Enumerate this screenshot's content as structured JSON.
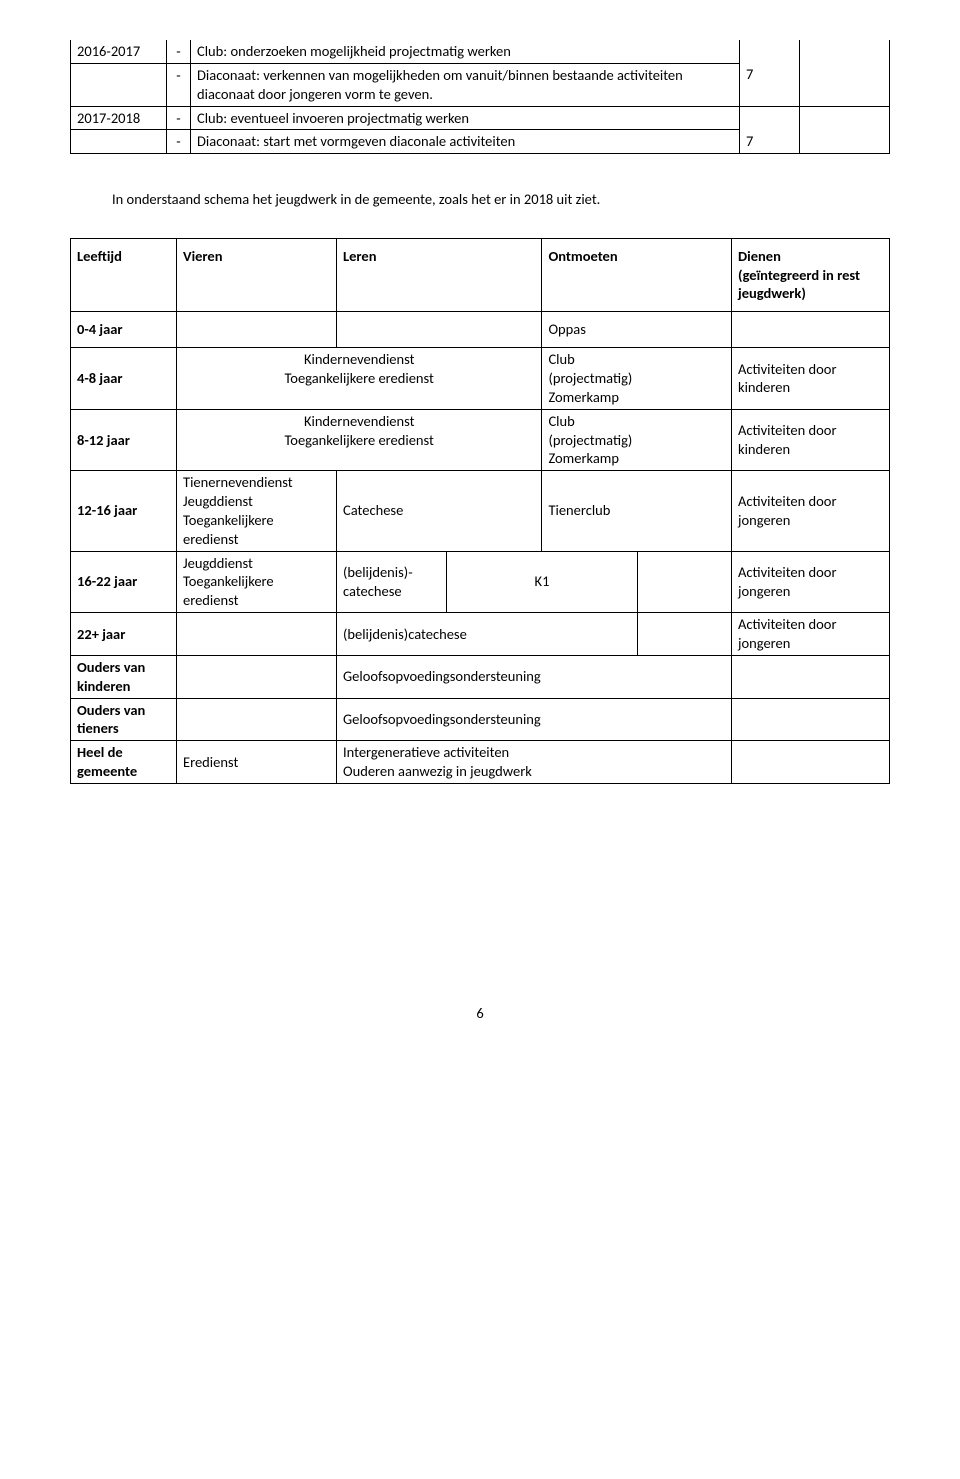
{
  "table1": {
    "r0": {
      "year": "2016-2017",
      "dash": "-",
      "text": "Club: onderzoeken mogelijkheid projectmatig werken"
    },
    "r1": {
      "dash": "-",
      "text": "Diaconaat: verkennen van mogelijkheden om vanuit/binnen bestaande activiteiten diaconaat door jongeren vorm te geven.",
      "num": "7"
    },
    "r2": {
      "year": "2017-2018",
      "dash": "-",
      "text": "Club: eventueel invoeren projectmatig werken"
    },
    "r3": {
      "dash": "-",
      "text": "Diaconaat: start met vormgeven diaconale activiteiten",
      "num": "7"
    }
  },
  "para": "In onderstaand schema het jeugdwerk in de gemeente, zoals het er in 2018 uit ziet.",
  "t2": {
    "h": {
      "leeftijd": "Leeftijd",
      "vieren": "Vieren",
      "leren": "Leren",
      "ontmoeten": "Ontmoeten",
      "dienenA": "Dienen",
      "dienenB": "(geïntegreerd in rest jeugdwerk)"
    },
    "r04": {
      "age": "0-4 jaar",
      "ont": "Oppas"
    },
    "r48": {
      "age": "4-8 jaar",
      "mid": "Kindernevendienst\nToegankelijkere eredienst",
      "ont": "Club\n(projectmatig)\nZomerkamp",
      "dien": "Activiteiten door kinderen"
    },
    "r812": {
      "age": "8-12 jaar",
      "mid": "Kindernevendienst\nToegankelijkere eredienst",
      "ont": "Club\n(projectmatig)\nZomerkamp",
      "dien": "Activiteiten door kinderen"
    },
    "r1216": {
      "age": "12-16 jaar",
      "vieren": "Tienernevendienst\nJeugddienst\nToegankelijkere eredienst",
      "leren": "Catechese",
      "ont": "Tienerclub",
      "dien": "Activiteiten door jongeren"
    },
    "r1622": {
      "age": "16-22 jaar",
      "vieren": "Jeugddienst\nToegankelijkere eredienst",
      "leren": "(belijdenis)-\ncatechese",
      "ont": "K1",
      "dien": "Activiteiten door jongeren"
    },
    "r22": {
      "age": "22+ jaar",
      "leren": "(belijdenis)catechese",
      "dien": "Activiteiten door jongeren"
    },
    "rOK": {
      "age": "Ouders van kinderen",
      "mid": "Geloofsopvoedingsondersteuning"
    },
    "rOT": {
      "age": "Ouders van tieners",
      "mid": "Geloofsopvoedingsondersteuning"
    },
    "rHG": {
      "age": "Heel de gemeente",
      "vieren": "Eredienst",
      "mid": "Intergeneratieve activiteiten\nOuderen aanwezig in jeugdwerk"
    }
  },
  "pageNum": "6"
}
